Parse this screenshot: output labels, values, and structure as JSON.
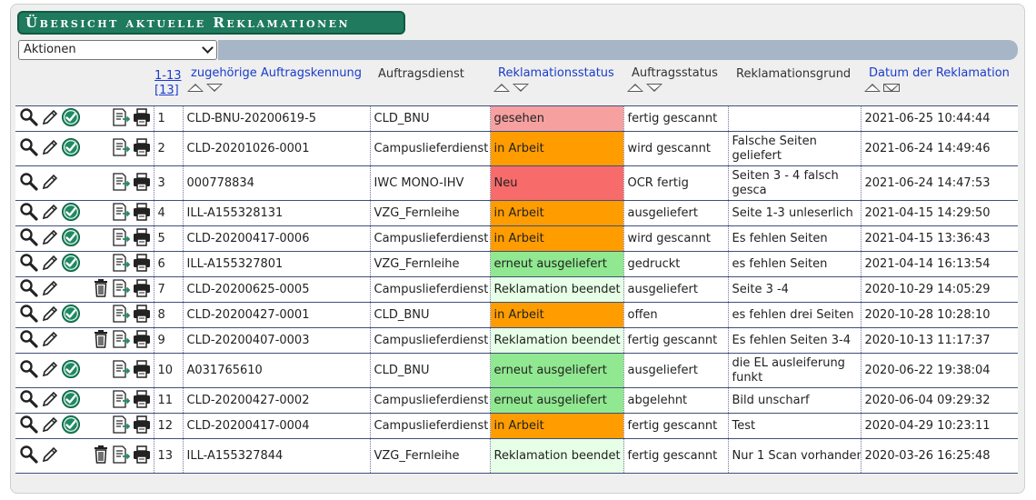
{
  "title": "Übersicht aktuelle Reklamationen",
  "actions": {
    "selected": "Aktionen"
  },
  "paging": {
    "range": "1-13",
    "total": "[13]"
  },
  "headers": {
    "auftragskennung": "zugehörige Auftragskennung",
    "auftragsdienst": "Auftragsdienst",
    "reklamationsstatus": "Reklamationsstatus",
    "auftragsstatus": "Auftragsstatus",
    "reklamationsgrund": "Reklamationsgrund",
    "datum": "Datum der Reklamation"
  },
  "colors": {
    "gesehen": "#f6a0a0",
    "in_arbeit": "#ff9c00",
    "neu": "#f76b6b",
    "erneut": "#90e890",
    "beendet": "#e6ffe6"
  },
  "rows": [
    {
      "nr": "1",
      "kennung": "CLD-BNU-20200619-5",
      "dienst": "CLD_BNU",
      "status": "gesehen",
      "status_color": "#f6a0a0",
      "auftragsstatus": "fertig gescannt",
      "grund": "",
      "datum": "2021-06-25 10:44:44",
      "check": true,
      "trash": false
    },
    {
      "nr": "2",
      "kennung": "CLD-20201026-0001",
      "dienst": "Campuslieferdienst",
      "status": "in Arbeit",
      "status_color": "#ff9c00",
      "auftragsstatus": "wird gescannt",
      "grund": "Falsche Seiten geliefert",
      "datum": "2021-06-24 14:49:46",
      "check": true,
      "trash": false
    },
    {
      "nr": "3",
      "kennung": "000778834",
      "dienst": "IWC MONO-IHV",
      "status": "Neu",
      "status_color": "#f76b6b",
      "auftragsstatus": "OCR fertig",
      "grund": "Seiten 3 - 4 falsch gesca",
      "datum": "2021-06-24 14:47:53",
      "check": false,
      "trash": false
    },
    {
      "nr": "4",
      "kennung": "ILL-A155328131",
      "dienst": "VZG_Fernleihe",
      "status": "in Arbeit",
      "status_color": "#ff9c00",
      "auftragsstatus": "ausgeliefert",
      "grund": "Seite 1-3 unleserlich",
      "datum": "2021-04-15 14:29:50",
      "check": true,
      "trash": false
    },
    {
      "nr": "5",
      "kennung": "CLD-20200417-0006",
      "dienst": "Campuslieferdienst",
      "status": "in Arbeit",
      "status_color": "#ff9c00",
      "auftragsstatus": "wird gescannt",
      "grund": "Es fehlen Seiten",
      "datum": "2021-04-15 13:36:43",
      "check": true,
      "trash": false
    },
    {
      "nr": "6",
      "kennung": "ILL-A155327801",
      "dienst": "VZG_Fernleihe",
      "status": "erneut ausgeliefert",
      "status_color": "#90e890",
      "auftragsstatus": "gedruckt",
      "grund": "es fehlen Seiten",
      "datum": "2021-04-14 16:13:54",
      "check": true,
      "trash": false
    },
    {
      "nr": "7",
      "kennung": "CLD-20200625-0005",
      "dienst": "Campuslieferdienst",
      "status": "Reklamation beendet",
      "status_color": "#e6ffe6",
      "auftragsstatus": "ausgeliefert",
      "grund": "Seite 3 -4",
      "datum": "2020-10-29 14:05:29",
      "check": false,
      "trash": true
    },
    {
      "nr": "8",
      "kennung": "CLD-20200427-0001",
      "dienst": "CLD_BNU",
      "status": "in Arbeit",
      "status_color": "#ff9c00",
      "auftragsstatus": "offen",
      "grund": "es fehlen drei Seiten",
      "datum": "2020-10-28 10:28:10",
      "check": true,
      "trash": false
    },
    {
      "nr": "9",
      "kennung": "CLD-20200407-0003",
      "dienst": "Campuslieferdienst",
      "status": "Reklamation beendet",
      "status_color": "#e6ffe6",
      "auftragsstatus": "fertig gescannt",
      "grund": "Es fehlen Seiten 3-4",
      "datum": "2020-10-13 11:17:37",
      "check": false,
      "trash": true
    },
    {
      "nr": "10",
      "kennung": "A031765610",
      "dienst": "CLD_BNU",
      "status": "erneut ausgeliefert",
      "status_color": "#90e890",
      "auftragsstatus": "ausgeliefert",
      "grund": "die EL ausleiferung funkt",
      "datum": "2020-06-22 19:38:04",
      "check": true,
      "trash": false
    },
    {
      "nr": "11",
      "kennung": "CLD-20200427-0002",
      "dienst": "Campuslieferdienst",
      "status": "erneut ausgeliefert",
      "status_color": "#90e890",
      "auftragsstatus": "abgelehnt",
      "grund": "Bild unscharf",
      "datum": "2020-06-04 09:29:32",
      "check": true,
      "trash": false
    },
    {
      "nr": "12",
      "kennung": "CLD-20200417-0004",
      "dienst": "Campuslieferdienst",
      "status": "in Arbeit",
      "status_color": "#ff9c00",
      "auftragsstatus": "fertig gescannt",
      "grund": "Test",
      "datum": "2020-04-29 10:23:11",
      "check": true,
      "trash": false
    },
    {
      "nr": "13",
      "kennung": "ILL-A155327844",
      "dienst": "VZG_Fernleihe",
      "status": "Reklamation beendet",
      "status_color": "#e6ffe6",
      "auftragsstatus": "fertig gescannt",
      "grund": "Nur 1 Scan vorhanden",
      "datum": "2020-03-26 16:25:48",
      "check": false,
      "trash": true
    }
  ]
}
